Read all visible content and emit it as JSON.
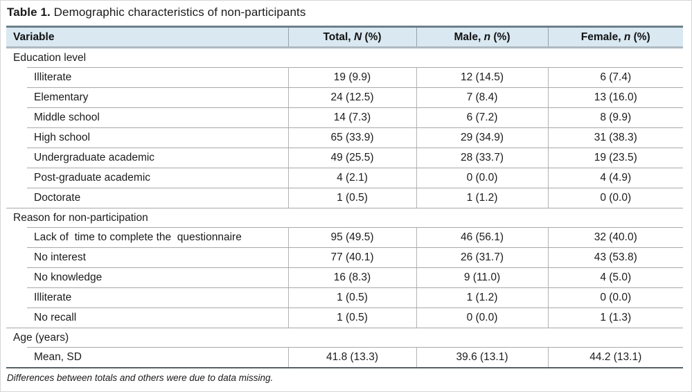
{
  "title": {
    "prefix": "Table 1.",
    "text": " Demographic characteristics of non-participants"
  },
  "table": {
    "headers": {
      "variable": "Variable",
      "total": {
        "pre": "Total, ",
        "italic": "N",
        "post": " (%)"
      },
      "male": {
        "pre": "Male, ",
        "italic": "n",
        "post": " (%)"
      },
      "female": {
        "pre": "Female, ",
        "italic": "n",
        "post": " (%)"
      }
    },
    "rows": [
      {
        "type": "section",
        "label": "Education level"
      },
      {
        "type": "item",
        "label": "Illiterate",
        "total": "19 (9.9)",
        "male": "12 (14.5)",
        "female": "6 (7.4)"
      },
      {
        "type": "item",
        "label": "Elementary",
        "total": "24 (12.5)",
        "male": "7 (8.4)",
        "female": "13 (16.0)"
      },
      {
        "type": "item",
        "label": "Middle school",
        "total": "14 (7.3)",
        "male": "6 (7.2)",
        "female": "8 (9.9)"
      },
      {
        "type": "item",
        "label": "High school",
        "total": "65 (33.9)",
        "male": "29 (34.9)",
        "female": "31 (38.3)"
      },
      {
        "type": "item",
        "label": "Undergraduate academic",
        "total": "49 (25.5)",
        "male": "28 (33.7)",
        "female": "19 (23.5)"
      },
      {
        "type": "item",
        "label": "Post-graduate academic",
        "total": "4 (2.1)",
        "male": "0 (0.0)",
        "female": "4 (4.9)"
      },
      {
        "type": "item",
        "label": "Doctorate",
        "total": "1 (0.5)",
        "male": "1 (1.2)",
        "female": "0 (0.0)"
      },
      {
        "type": "section",
        "label": "Reason for non-participation"
      },
      {
        "type": "item",
        "label": "Lack of  time to complete the  questionnaire",
        "total": "95 (49.5)",
        "male": "46 (56.1)",
        "female": "32 (40.0)"
      },
      {
        "type": "item",
        "label": "No interest",
        "total": "77 (40.1)",
        "male": "26 (31.7)",
        "female": "43 (53.8)"
      },
      {
        "type": "item",
        "label": "No knowledge",
        "total": "16 (8.3)",
        "male": "9 (11.0)",
        "female": "4 (5.0)"
      },
      {
        "type": "item",
        "label": "Illiterate",
        "total": "1 (0.5)",
        "male": "1 (1.2)",
        "female": "0 (0.0)"
      },
      {
        "type": "item",
        "label": "No recall",
        "total": "1 (0.5)",
        "male": "0 (0.0)",
        "female": "1 (1.3)"
      },
      {
        "type": "section",
        "label": "Age (years)"
      },
      {
        "type": "item",
        "label": "Mean, SD",
        "total": "41.8 (13.3)",
        "male": "39.6 (13.1)",
        "female": "44.2 (13.1)"
      }
    ],
    "footnote": "Differences between totals and others were due to data missing."
  },
  "colors": {
    "header_bg": "#d9e8f1",
    "header_top_border": "#6c7f89",
    "header_bottom_border": "#aebac0",
    "row_border": "#a8a8a8",
    "column_border": "#b3b3b3",
    "table_bottom_border": "#555f66",
    "text": "#1b1b1b"
  }
}
